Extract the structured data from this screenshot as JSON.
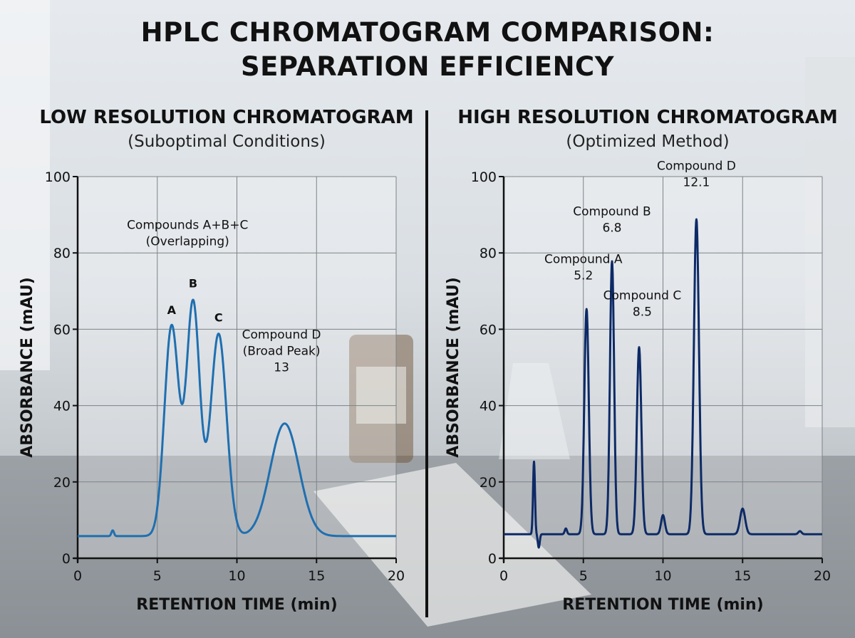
{
  "title": "HPLC CHROMATOGRAM COMPARISON:\nSEPARATION EFFICIENCY",
  "colors": {
    "low_res_line": "#1f6fb0",
    "high_res_line": "#0d2a66"
  },
  "chart_data": [
    {
      "type": "line",
      "title": "LOW RESOLUTION CHROMATOGRAM",
      "subtitle": "(Suboptimal Conditions)",
      "xlabel": "RETENTION TIME (min)",
      "ylabel": "ABSORBANCE (mAU)",
      "xlim": [
        0,
        20
      ],
      "ylim": [
        0,
        100
      ],
      "xticks": [
        0,
        5,
        10,
        15,
        20
      ],
      "yticks": [
        0,
        20,
        40,
        60,
        80,
        100
      ],
      "grid": true,
      "baseline": 5.8,
      "peaks": [
        {
          "rt": 2.2,
          "height": 1.5,
          "width": 0.08
        },
        {
          "rt": 5.9,
          "height": 55,
          "width": 0.45
        },
        {
          "rt": 7.25,
          "height": 61,
          "width": 0.42
        },
        {
          "rt": 8.85,
          "height": 53,
          "width": 0.5
        },
        {
          "rt": 13.0,
          "height": 29.5,
          "width": 0.9
        }
      ],
      "annotations": [
        {
          "lines": [
            "Compounds A+B+C",
            "(Overlapping)"
          ],
          "x": 6.9,
          "y": 82
        },
        {
          "lines": [
            "A"
          ],
          "x": 5.9,
          "y": 64,
          "bold": true
        },
        {
          "lines": [
            "B"
          ],
          "x": 7.25,
          "y": 71,
          "bold": true
        },
        {
          "lines": [
            "C"
          ],
          "x": 8.85,
          "y": 62,
          "bold": true
        },
        {
          "lines": [
            "Compound D",
            "(Broad Peak)",
            "13"
          ],
          "x": 12.8,
          "y": 49
        }
      ]
    },
    {
      "type": "line",
      "title": "HIGH RESOLUTION CHROMATOGRAM",
      "subtitle": "(Optimized Method)",
      "xlabel": "RETENTION TIME (min)",
      "ylabel": "ABSORBANCE (mAU)",
      "xlim": [
        0,
        20
      ],
      "ylim": [
        0,
        100
      ],
      "xticks": [
        0,
        5,
        10,
        15,
        20
      ],
      "yticks": [
        0,
        20,
        40,
        60,
        80,
        100
      ],
      "grid": true,
      "baseline": 6.3,
      "peaks": [
        {
          "rt": 1.9,
          "height": 19,
          "width": 0.06
        },
        {
          "rt": 2.2,
          "height": -3.5,
          "width": 0.06
        },
        {
          "rt": 3.9,
          "height": 1.5,
          "width": 0.07
        },
        {
          "rt": 5.2,
          "height": 59,
          "width": 0.14
        },
        {
          "rt": 6.8,
          "height": 71.5,
          "width": 0.13
        },
        {
          "rt": 8.5,
          "height": 49,
          "width": 0.14
        },
        {
          "rt": 10.0,
          "height": 5,
          "width": 0.12
        },
        {
          "rt": 12.1,
          "height": 82.5,
          "width": 0.16
        },
        {
          "rt": 15.0,
          "height": 6.7,
          "width": 0.16
        },
        {
          "rt": 18.6,
          "height": 0.8,
          "width": 0.1
        }
      ],
      "annotations": [
        {
          "lines": [
            "Compound A",
            "5.2"
          ],
          "x": 5.0,
          "y": 73
        },
        {
          "lines": [
            "Compound B",
            "6.8"
          ],
          "x": 6.8,
          "y": 85.5
        },
        {
          "lines": [
            "Compound C",
            "8.5"
          ],
          "x": 8.7,
          "y": 63.5
        },
        {
          "lines": [
            "Compound D",
            "12.1"
          ],
          "x": 12.1,
          "y": 97.5
        }
      ]
    }
  ]
}
